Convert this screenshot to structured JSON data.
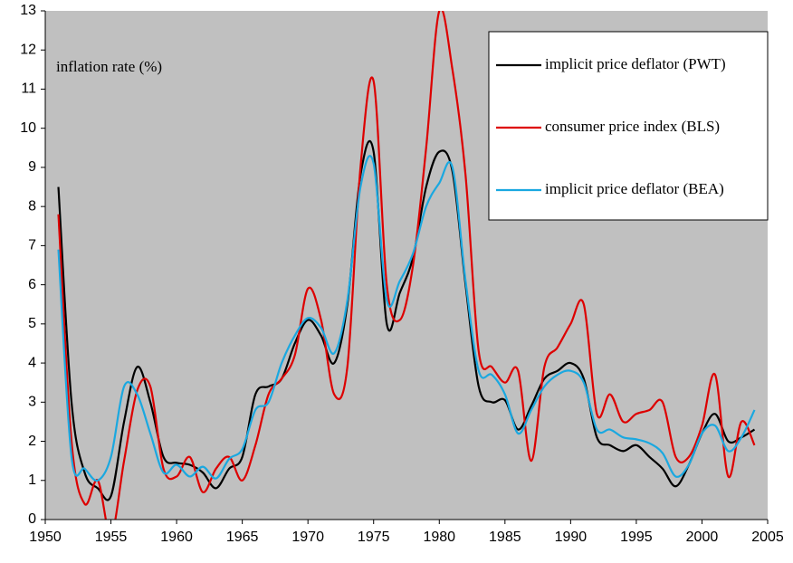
{
  "chart_data": {
    "type": "line",
    "annotation": "inflation rate (%)",
    "x": [
      1951,
      1952,
      1953,
      1954,
      1955,
      1956,
      1957,
      1958,
      1959,
      1960,
      1961,
      1962,
      1963,
      1964,
      1965,
      1966,
      1967,
      1968,
      1969,
      1970,
      1971,
      1972,
      1973,
      1974,
      1975,
      1976,
      1977,
      1978,
      1979,
      1980,
      1981,
      1982,
      1983,
      1984,
      1985,
      1986,
      1987,
      1988,
      1989,
      1990,
      1991,
      1992,
      1993,
      1994,
      1995,
      1996,
      1997,
      1998,
      1999,
      2000,
      2001,
      2002,
      2003,
      2004
    ],
    "series": [
      {
        "name": "implicit price deflator (PWT)",
        "color": "#000000",
        "values": [
          8.5,
          3.0,
          1.2,
          0.8,
          0.6,
          2.5,
          3.9,
          3.0,
          1.6,
          1.45,
          1.4,
          1.2,
          0.8,
          1.3,
          1.6,
          3.2,
          3.4,
          3.6,
          4.5,
          5.1,
          4.7,
          4.0,
          5.5,
          8.8,
          9.4,
          5.0,
          5.8,
          6.7,
          8.5,
          9.4,
          8.9,
          6.0,
          3.4,
          3.0,
          3.05,
          2.3,
          2.9,
          3.6,
          3.8,
          4.0,
          3.6,
          2.1,
          1.9,
          1.75,
          1.9,
          1.6,
          1.3,
          0.85,
          1.4,
          2.2,
          2.7,
          2.0,
          2.1,
          2.3
        ]
      },
      {
        "name": "consumer price index (BLS)",
        "color": "#dd0000",
        "values": [
          7.8,
          2.0,
          0.4,
          1.0,
          -0.4,
          1.5,
          3.3,
          3.4,
          1.3,
          1.1,
          1.6,
          0.7,
          1.3,
          1.6,
          1.0,
          1.9,
          3.2,
          3.6,
          4.2,
          5.9,
          5.1,
          3.2,
          3.9,
          9.0,
          11.2,
          6.0,
          5.1,
          6.5,
          9.5,
          13.0,
          11.5,
          8.8,
          4.3,
          3.9,
          3.5,
          3.8,
          1.5,
          3.9,
          4.4,
          5.0,
          5.5,
          2.7,
          3.2,
          2.5,
          2.7,
          2.8,
          3.0,
          1.6,
          1.6,
          2.4,
          3.7,
          1.1,
          2.5,
          1.9
        ]
      },
      {
        "name": "implicit price deflator (BEA)",
        "color": "#1aa8e0",
        "values": [
          6.9,
          1.6,
          1.3,
          1.0,
          1.6,
          3.4,
          3.2,
          2.2,
          1.2,
          1.4,
          1.1,
          1.35,
          1.05,
          1.55,
          1.8,
          2.8,
          3.0,
          4.0,
          4.7,
          5.15,
          4.9,
          4.25,
          5.6,
          8.5,
          9.1,
          5.6,
          6.1,
          6.8,
          8.0,
          8.6,
          9.0,
          6.1,
          3.8,
          3.7,
          3.2,
          2.2,
          2.8,
          3.4,
          3.7,
          3.8,
          3.5,
          2.3,
          2.3,
          2.1,
          2.05,
          1.95,
          1.7,
          1.1,
          1.4,
          2.2,
          2.4,
          1.75,
          2.1,
          2.8
        ]
      }
    ],
    "xlim": [
      1950,
      2005
    ],
    "xticks": [
      1950,
      1955,
      1960,
      1965,
      1970,
      1975,
      1980,
      1985,
      1990,
      1995,
      2000,
      2005
    ],
    "ylim": [
      0,
      13
    ],
    "yticks": [
      0,
      1,
      2,
      3,
      4,
      5,
      6,
      7,
      8,
      9,
      10,
      11,
      12,
      13
    ],
    "background": "#c0c0c0",
    "legend": "upper-right"
  }
}
